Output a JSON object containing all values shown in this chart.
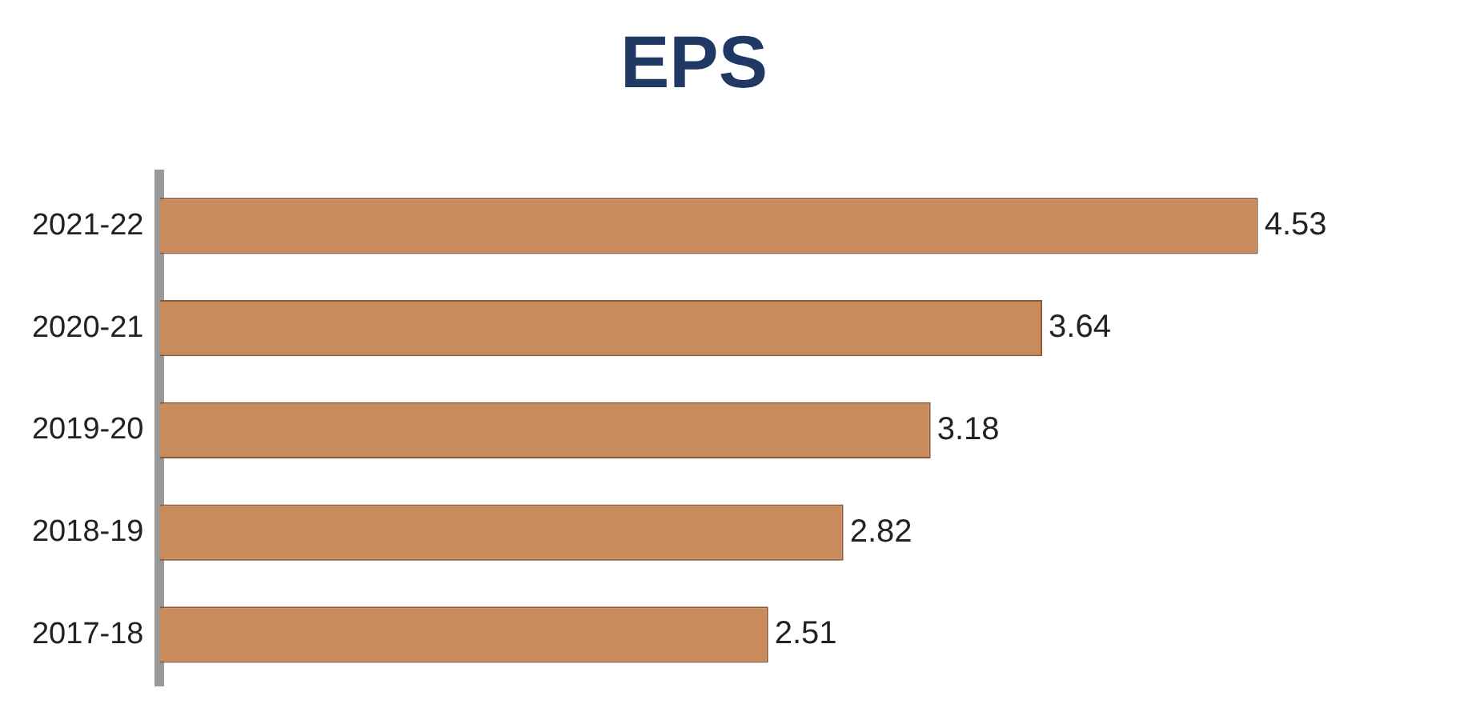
{
  "chart_data": {
    "type": "bar",
    "title": "EPS",
    "orientation": "horizontal",
    "categories": [
      "2021-22",
      "2020-21",
      "2019-20",
      "2018-19",
      "2017-18"
    ],
    "values": [
      4.53,
      3.64,
      3.18,
      2.82,
      2.51
    ],
    "color": "#c98a5c",
    "data_labels": true,
    "grid": false,
    "legend": false
  }
}
